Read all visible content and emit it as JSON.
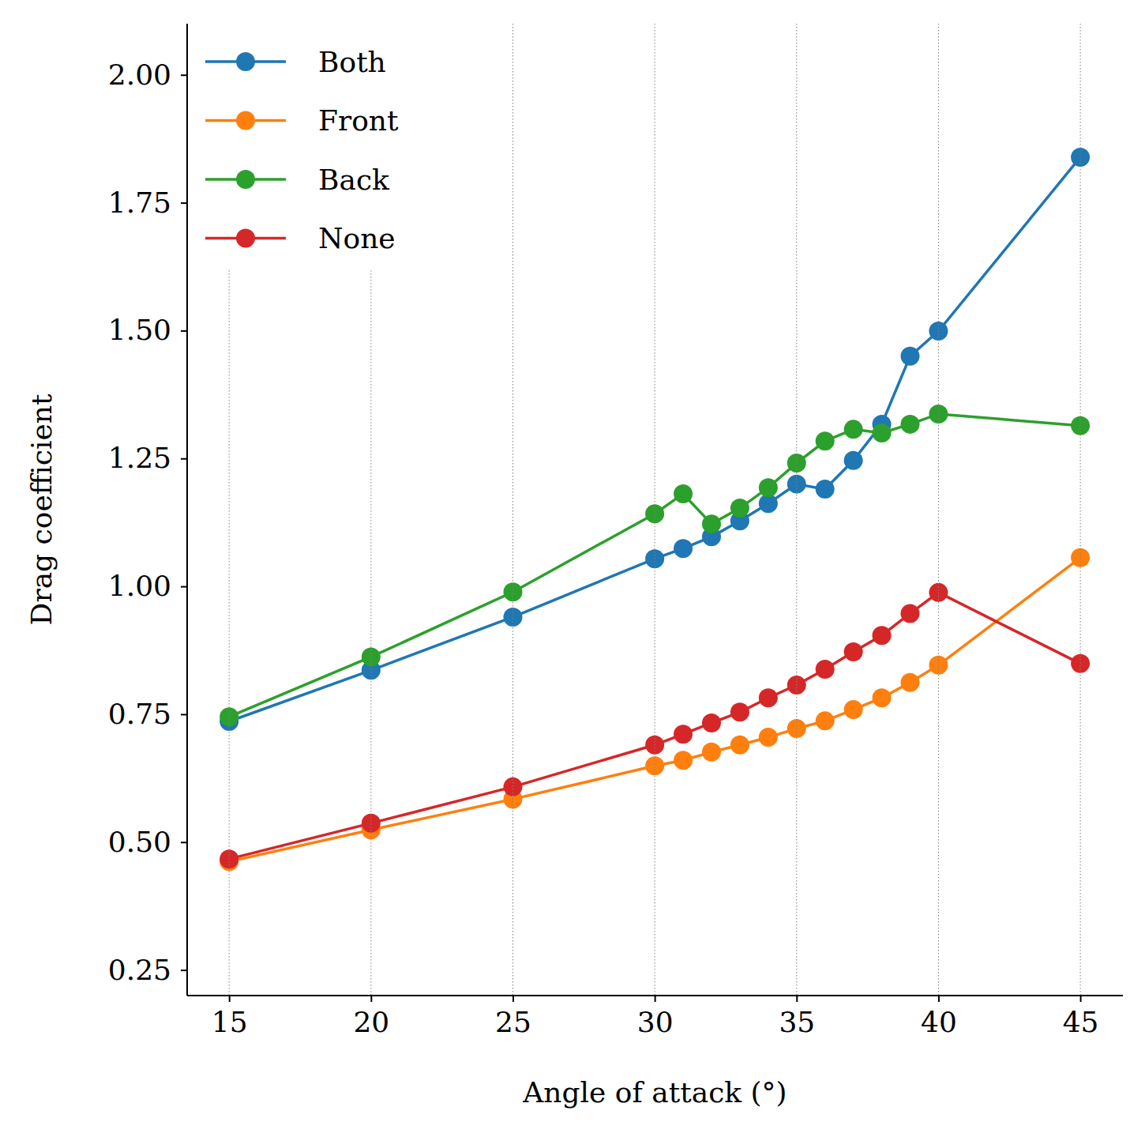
{
  "chart_data": {
    "type": "line",
    "x_label": "Angle of attack (°)",
    "y_label": "Drag coefficient",
    "x": [
      15,
      20,
      25,
      30,
      31,
      32,
      33,
      34,
      35,
      36,
      37,
      38,
      39,
      40,
      45
    ],
    "series": [
      {
        "name": "Both",
        "color": "#1f77b4",
        "marker": "circle",
        "line_style": "solid",
        "values": [
          0.736,
          0.836,
          0.94,
          1.054,
          1.074,
          1.097,
          1.128,
          1.162,
          1.2,
          1.19,
          1.246,
          1.317,
          1.45,
          1.499,
          1.839
        ]
      },
      {
        "name": "Front",
        "color": "#ff7f0e",
        "marker": "circle",
        "line_style": "solid",
        "values": [
          0.462,
          0.524,
          0.584,
          0.649,
          0.66,
          0.676,
          0.69,
          0.705,
          0.722,
          0.737,
          0.759,
          0.782,
          0.812,
          0.846,
          1.056
        ]
      },
      {
        "name": "Back",
        "color": "#2ca02c",
        "marker": "circle",
        "line_style": "solid",
        "values": [
          0.745,
          0.862,
          0.989,
          1.142,
          1.181,
          1.122,
          1.153,
          1.193,
          1.241,
          1.284,
          1.307,
          1.3,
          1.317,
          1.337,
          1.314
        ]
      },
      {
        "name": "None",
        "color": "#d62728",
        "marker": "circle",
        "line_style": "solid",
        "values": [
          0.467,
          0.537,
          0.608,
          0.69,
          0.711,
          0.733,
          0.754,
          0.782,
          0.807,
          0.838,
          0.872,
          0.904,
          0.947,
          0.988,
          0.849
        ]
      }
    ],
    "xlim": [
      13.52,
      46.5
    ],
    "xticks": [
      15,
      20,
      25,
      30,
      35,
      40,
      45
    ],
    "ylim": [
      0.2,
      2.1
    ],
    "yticks": [
      0.25,
      {
        "value": 0.5,
        "label": "0.50"
      },
      0.75,
      {
        "value": 1,
        "label": "1.00"
      },
      1.25,
      {
        "value": 1.5,
        "label": "1.50"
      },
      1.75,
      {
        "value": 2,
        "label": "2.00"
      }
    ],
    "grid": "x",
    "legend": "upper left"
  }
}
